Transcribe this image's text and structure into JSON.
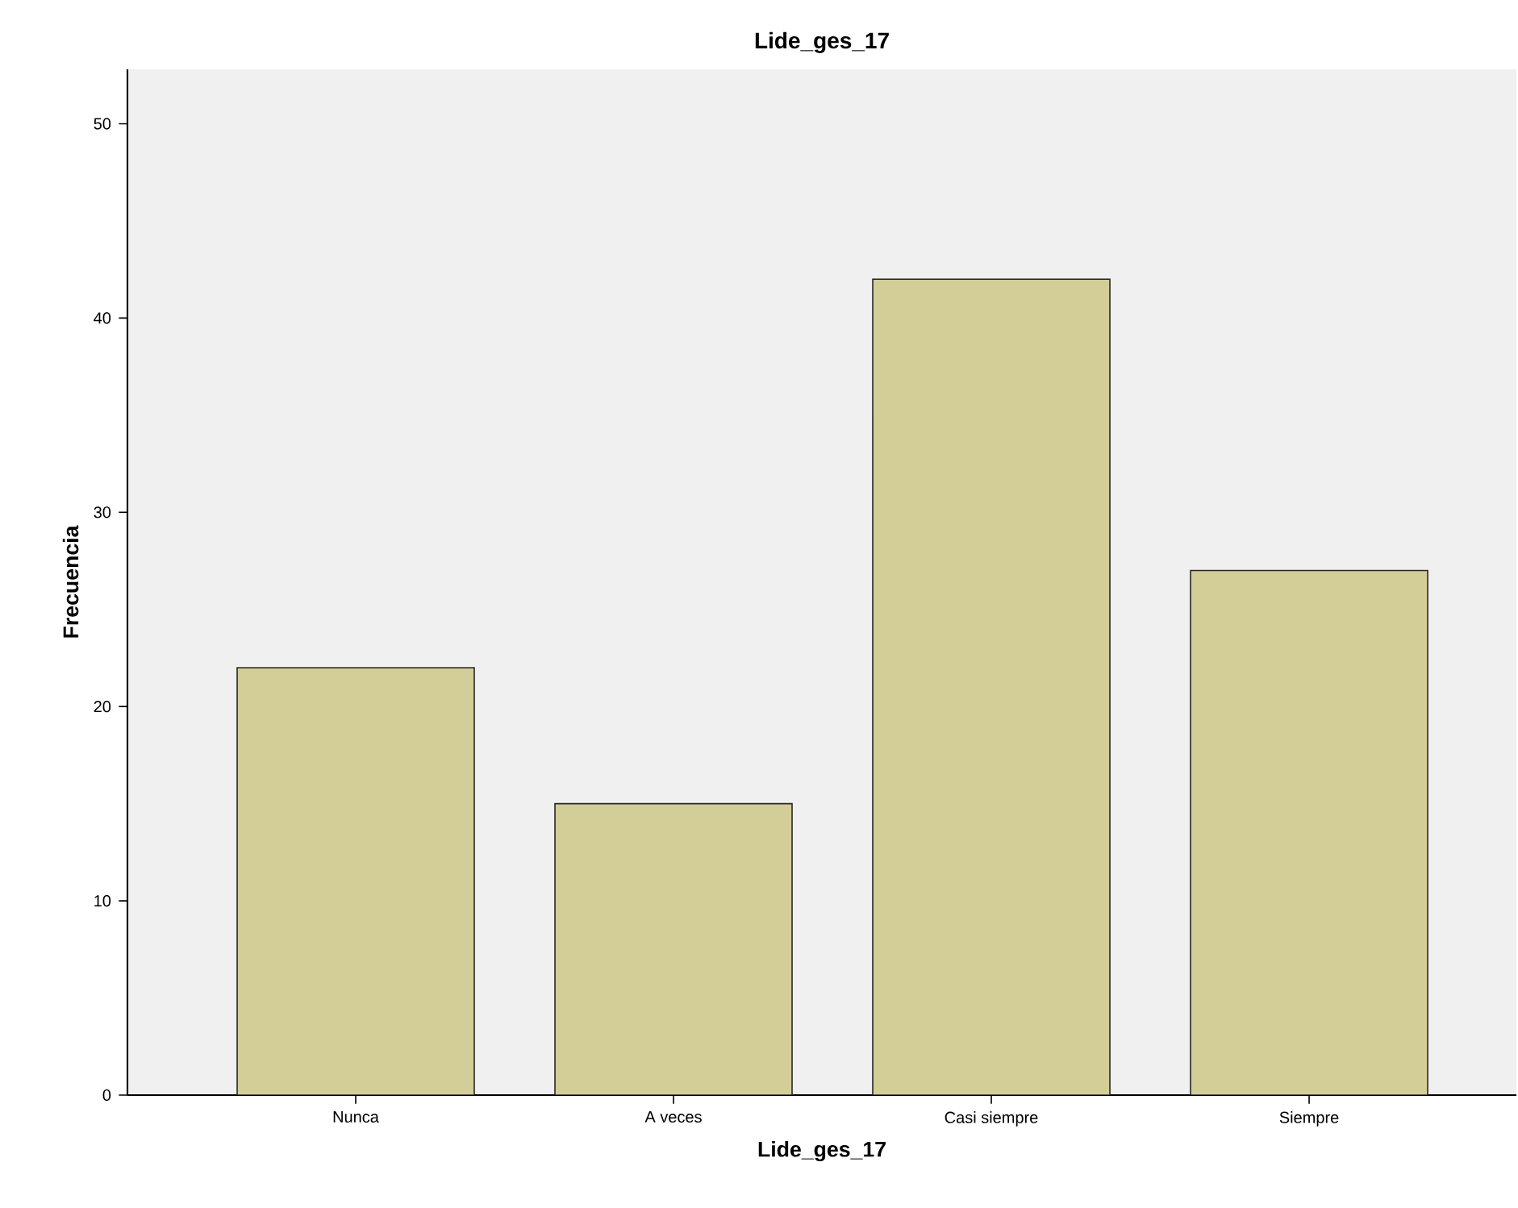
{
  "chart_data": {
    "type": "bar",
    "title": "Lide_ges_17",
    "xlabel": "Lide_ges_17",
    "ylabel": "Frecuencia",
    "categories": [
      "Nunca",
      "A veces",
      "Casi siempre",
      "Siempre"
    ],
    "values": [
      22,
      15,
      42,
      27
    ],
    "color": "#d3ce97",
    "ylim": [
      0,
      52.8
    ],
    "yticks": [
      0,
      10,
      20,
      30,
      40,
      50
    ]
  }
}
